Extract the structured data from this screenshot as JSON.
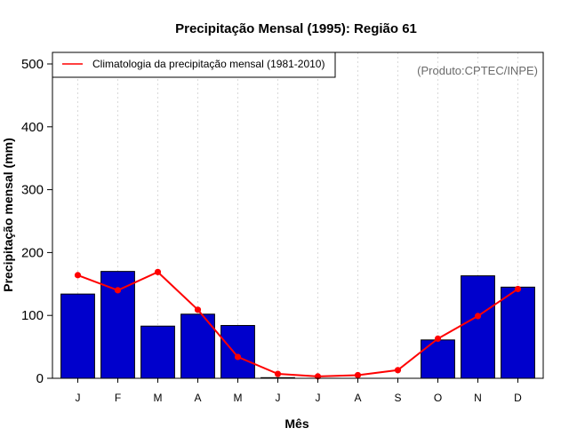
{
  "chart_data": {
    "type": "bar",
    "title": "Precipitação Mensal (1995): Região 61",
    "xlabel": "Mês",
    "ylabel": "Precipitação mensal (mm)",
    "ylim": [
      0,
      500
    ],
    "yticks": [
      0,
      100,
      200,
      300,
      400,
      500
    ],
    "categories": [
      "J",
      "F",
      "M",
      "A",
      "M",
      "J",
      "J",
      "A",
      "S",
      "O",
      "N",
      "D"
    ],
    "series": [
      {
        "name": "Precipitação mensal (1995)",
        "type": "bar",
        "color": "#0000cc",
        "values": [
          134,
          170,
          83,
          102,
          84,
          1,
          0,
          0,
          0,
          61,
          163,
          145
        ]
      },
      {
        "name": "Climatologia da precipitação mensal (1981-2010)",
        "type": "line",
        "color": "#ff0000",
        "values": [
          164,
          140,
          169,
          109,
          34,
          7,
          3,
          5,
          13,
          63,
          99,
          142
        ]
      }
    ],
    "legend": {
      "position": "top-left",
      "label": "Climatologia da precipitação mensal (1981-2010)"
    },
    "grid": {
      "vertical": true,
      "horizontal": false
    },
    "credit": "(Produto:CPTEC/INPE)"
  }
}
